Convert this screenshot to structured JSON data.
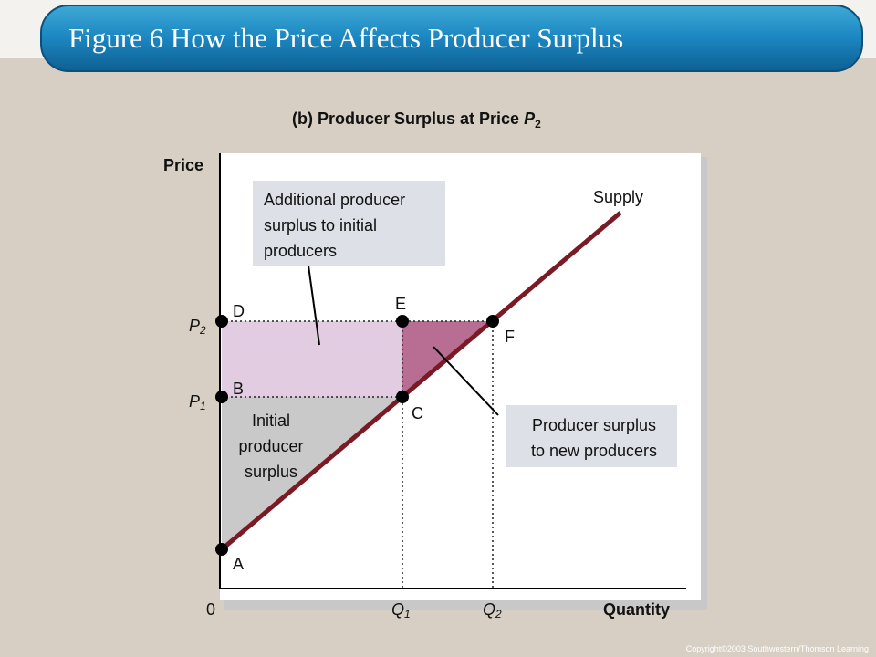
{
  "title": "Figure 6 How the Price Affects Producer Surplus",
  "subtitle": {
    "text": "(b) Producer Surplus at Price",
    "variable": "P",
    "subscript": "2"
  },
  "axes": {
    "y_label": "Price",
    "x_label": "Quantity",
    "origin": "0"
  },
  "price_labels": [
    {
      "letter": "P",
      "sub": "2"
    },
    {
      "letter": "P",
      "sub": "1"
    }
  ],
  "quantity_labels": [
    {
      "letter": "Q",
      "sub": "1"
    },
    {
      "letter": "Q",
      "sub": "2"
    }
  ],
  "points": [
    "A",
    "B",
    "C",
    "D",
    "E",
    "F"
  ],
  "curve_label": "Supply",
  "annotations": {
    "additional": [
      "Additional producer",
      "surplus to initial",
      "producers"
    ],
    "initial": [
      "Initial",
      "producer",
      "surplus"
    ],
    "new": [
      "Producer surplus",
      "to new producers"
    ]
  },
  "copyright": "Copyright©2003  Southwestern/Thomson Learning"
}
